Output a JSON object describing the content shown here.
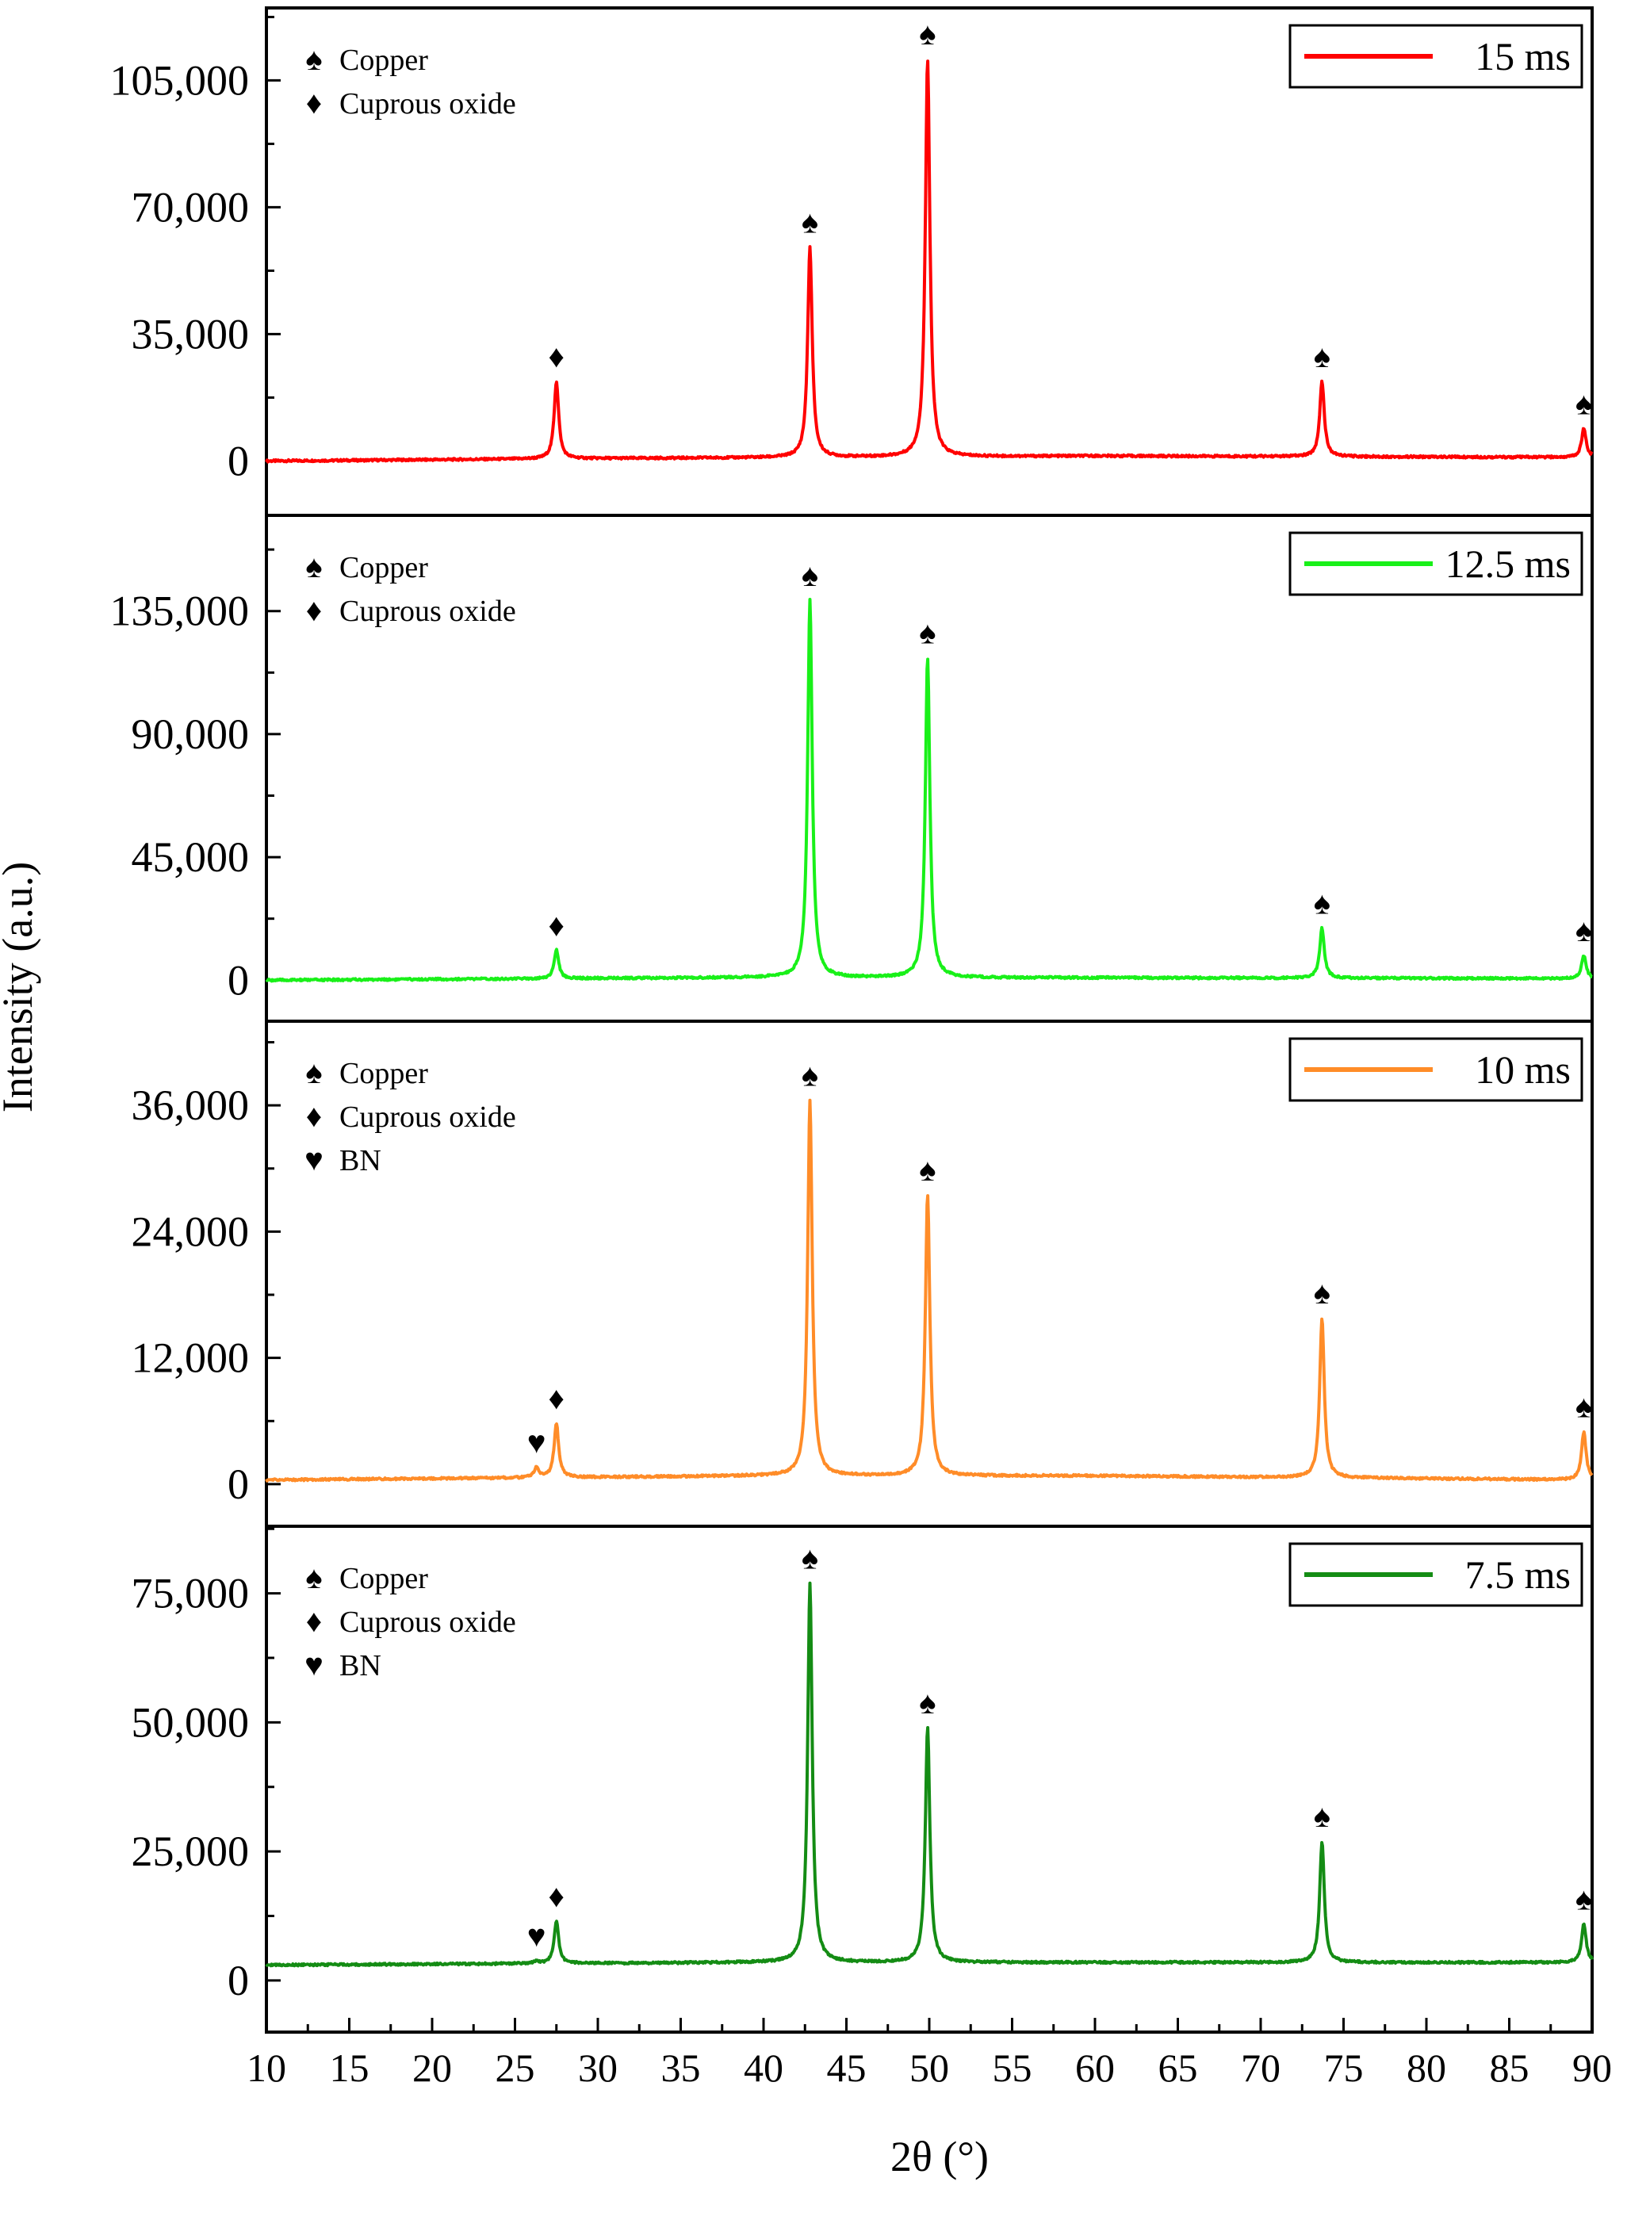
{
  "figure": {
    "ylabel": "Intensity (a.u.)",
    "xlabel": "2θ (°)"
  },
  "symbols": {
    "Copper": "♠",
    "Cuprous oxide": "♦",
    "BN": "♥"
  },
  "chart_data": {
    "type": "line",
    "title": "",
    "xlabel": "2θ (°)",
    "ylabel": "Intensity (a.u.)",
    "xlim": [
      10,
      90
    ],
    "xticks": [
      10,
      15,
      20,
      25,
      30,
      35,
      40,
      45,
      50,
      55,
      60,
      65,
      70,
      75,
      80,
      85,
      90
    ],
    "panels": [
      {
        "name": "15 ms",
        "legend": "15 ms",
        "color": "#ff0000",
        "ylim": [
          -15000,
          125000
        ],
        "yticks": [
          0,
          35000,
          70000,
          105000
        ],
        "ytick_labels": [
          "0",
          "35,000",
          "70,000",
          "105,000"
        ],
        "key": [
          "Copper",
          "Cuprous oxide"
        ],
        "baseline": [
          [
            10,
            0
          ],
          [
            30,
            700
          ],
          [
            60,
            1400
          ],
          [
            90,
            1000
          ]
        ],
        "peaks": [
          {
            "x": 27.5,
            "y": 22000,
            "label": "Cuprous oxide"
          },
          {
            "x": 42.8,
            "y": 59000,
            "label": "Copper"
          },
          {
            "x": 49.9,
            "y": 111000,
            "label": "Copper"
          },
          {
            "x": 73.7,
            "y": 22000,
            "label": "Copper"
          },
          {
            "x": 89.5,
            "y": 9000,
            "label": "Copper"
          }
        ]
      },
      {
        "name": "12.5 ms",
        "legend": "12.5 ms",
        "color": "#19f019",
        "ylim": [
          -15000,
          170000
        ],
        "yticks": [
          0,
          45000,
          90000,
          135000
        ],
        "ytick_labels": [
          "0",
          "45,000",
          "90,000",
          "135,000"
        ],
        "key": [
          "Copper",
          "Cuprous oxide"
        ],
        "baseline": [
          [
            10,
            0
          ],
          [
            40,
            1000
          ],
          [
            60,
            900
          ],
          [
            90,
            600
          ]
        ],
        "peaks": [
          {
            "x": 27.5,
            "y": 11000,
            "label": "Cuprous oxide"
          },
          {
            "x": 42.8,
            "y": 139000,
            "label": "Copper"
          },
          {
            "x": 49.9,
            "y": 118000,
            "label": "Copper"
          },
          {
            "x": 73.7,
            "y": 19000,
            "label": "Copper"
          },
          {
            "x": 89.5,
            "y": 9000,
            "label": "Copper"
          }
        ]
      },
      {
        "name": "10 ms",
        "legend": "10 ms",
        "color": "#ff8c28",
        "ylim": [
          -4000,
          44000
        ],
        "yticks": [
          0,
          12000,
          24000,
          36000
        ],
        "ytick_labels": [
          "0",
          "12,000",
          "24,000",
          "36,000"
        ],
        "key": [
          "Copper",
          "Cuprous oxide",
          "BN"
        ],
        "baseline": [
          [
            10,
            400
          ],
          [
            40,
            800
          ],
          [
            60,
            800
          ],
          [
            90,
            400
          ]
        ],
        "peaks": [
          {
            "x": 26.3,
            "y": 1600,
            "label": "BN"
          },
          {
            "x": 27.5,
            "y": 5800,
            "label": "Cuprous oxide"
          },
          {
            "x": 42.8,
            "y": 36500,
            "label": "Copper"
          },
          {
            "x": 49.9,
            "y": 27500,
            "label": "Copper"
          },
          {
            "x": 73.7,
            "y": 15800,
            "label": "Copper"
          },
          {
            "x": 89.5,
            "y": 5000,
            "label": "Copper"
          }
        ]
      },
      {
        "name": "7.5 ms",
        "legend": "7.5 ms",
        "color": "#148c14",
        "ylim": [
          -10000,
          88000
        ],
        "yticks": [
          0,
          25000,
          50000,
          75000
        ],
        "ytick_labels": [
          "0",
          "25,000",
          "50,000",
          "75,000"
        ],
        "key": [
          "Copper",
          "Cuprous oxide",
          "BN"
        ],
        "baseline": [
          [
            10,
            3000
          ],
          [
            40,
            3500
          ],
          [
            60,
            3500
          ],
          [
            90,
            3500
          ]
        ],
        "peaks": [
          {
            "x": 26.3,
            "y": 3800,
            "label": "BN"
          },
          {
            "x": 27.5,
            "y": 11500,
            "label": "Cuprous oxide"
          },
          {
            "x": 42.8,
            "y": 77000,
            "label": "Copper"
          },
          {
            "x": 49.9,
            "y": 49000,
            "label": "Copper"
          },
          {
            "x": 73.7,
            "y": 27000,
            "label": "Copper"
          },
          {
            "x": 89.5,
            "y": 11000,
            "label": "Copper"
          }
        ]
      }
    ]
  }
}
